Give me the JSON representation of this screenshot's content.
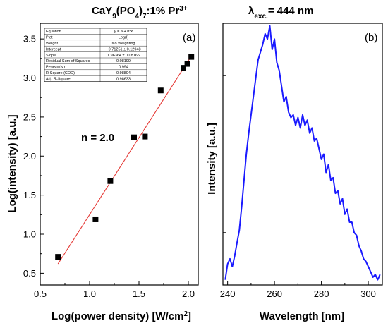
{
  "title": {
    "compound_parts": [
      "CaY",
      "9",
      "(PO",
      "4",
      ")",
      "7",
      ":1% Pr",
      "3+"
    ],
    "excitation_parts": [
      "λ",
      "exc.",
      "= 444 nm"
    ]
  },
  "chart_data": [
    {
      "type": "scatter",
      "panel_label": "(a)",
      "xlabel_parts": [
        "Log(power density) [W/cm",
        "2",
        "]"
      ],
      "ylabel": "Log(intensity) [a.u.]",
      "xlim": [
        0.5,
        2.1
      ],
      "ylim": [
        0.35,
        3.7
      ],
      "xticks": [
        "0.5",
        "1.0",
        "1.5",
        "2.0"
      ],
      "yticks": [
        "0.5",
        "1.0",
        "1.5",
        "2.0",
        "2.5",
        "3.0",
        "3.5"
      ],
      "series": [
        {
          "x": [
            0.68,
            1.06,
            1.21,
            1.45,
            1.56,
            1.72,
            1.95,
            1.99,
            2.03
          ],
          "y": [
            0.71,
            1.19,
            1.68,
            2.24,
            2.25,
            2.84,
            3.13,
            3.18,
            3.27
          ]
        }
      ],
      "fit_line": {
        "x": [
          0.68,
          2.03
        ],
        "y": [
          0.62,
          3.28
        ],
        "color": "#e53935"
      },
      "annotation": "n = 2.0",
      "marker_color": "#000000",
      "stats_table": [
        [
          "Equation",
          "y = a + b*x"
        ],
        [
          "Plot",
          "Log(I)"
        ],
        [
          "Weight",
          "No Weighting"
        ],
        [
          "Intercept",
          "−0.71251 ± 0.12948"
        ],
        [
          "Slope",
          "1.96364 ± 0.08166"
        ],
        [
          "Residual Sum of Squares",
          "0.08199"
        ],
        [
          "Pearson's r",
          "0.994"
        ],
        [
          "R-Square (COD)",
          "0.98804"
        ],
        [
          "Adj. R-Square",
          "0.98633"
        ]
      ]
    },
    {
      "type": "line",
      "panel_label": "(b)",
      "xlabel": "Wavelength [nm]",
      "ylabel": "Intensity [a.u.]",
      "xlim": [
        238,
        306
      ],
      "ylim": [
        0,
        1
      ],
      "xticks": [
        240,
        260,
        280,
        300
      ],
      "color": "#1a1aff",
      "grid": false,
      "series": [
        {
          "x": [
            239,
            240,
            241,
            242,
            243,
            244,
            245,
            246,
            247,
            248,
            249,
            250,
            251,
            252,
            253,
            254,
            255,
            256,
            257,
            258,
            259,
            260,
            261,
            262,
            263,
            264,
            265,
            266,
            267,
            268,
            269,
            270,
            271,
            272,
            273,
            274,
            275,
            276,
            277,
            278,
            279,
            280,
            281,
            282,
            283,
            284,
            285,
            286,
            287,
            288,
            289,
            290,
            291,
            292,
            293,
            294,
            295,
            296,
            297,
            298,
            299,
            300,
            301,
            302,
            303,
            304,
            305
          ],
          "y": [
            0.02,
            0.08,
            0.1,
            0.07,
            0.11,
            0.16,
            0.21,
            0.3,
            0.4,
            0.5,
            0.58,
            0.65,
            0.72,
            0.79,
            0.86,
            0.89,
            0.92,
            0.96,
            0.94,
            0.99,
            0.9,
            0.94,
            0.85,
            0.82,
            0.76,
            0.7,
            0.72,
            0.66,
            0.64,
            0.65,
            0.61,
            0.64,
            0.6,
            0.65,
            0.61,
            0.63,
            0.58,
            0.6,
            0.55,
            0.56,
            0.52,
            0.48,
            0.5,
            0.43,
            0.46,
            0.4,
            0.41,
            0.35,
            0.36,
            0.31,
            0.33,
            0.27,
            0.29,
            0.24,
            0.24,
            0.2,
            0.19,
            0.15,
            0.13,
            0.1,
            0.09,
            0.07,
            0.05,
            0.03,
            0.04,
            0.02,
            0.04
          ]
        }
      ]
    }
  ]
}
